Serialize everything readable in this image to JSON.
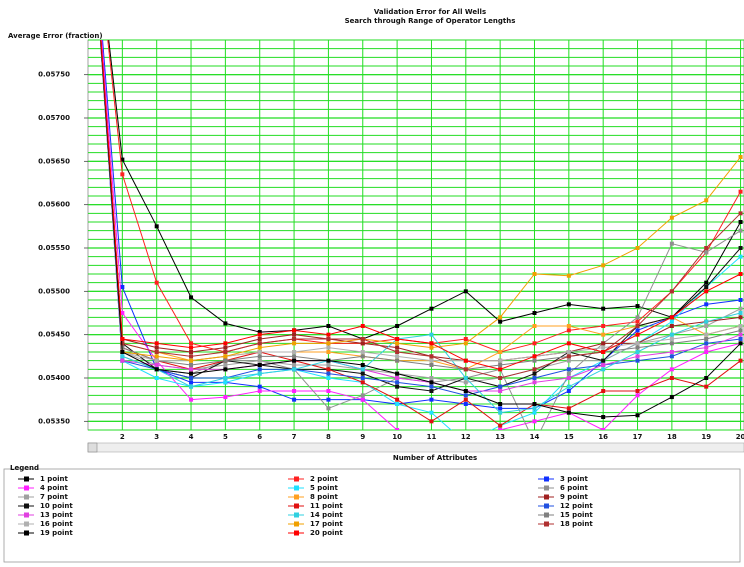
{
  "chart_data": {
    "type": "line",
    "title": "Validation Error for All Wells",
    "subtitle": "Search through Range of Operator Lengths",
    "y_label": "Average Error (fraction)",
    "x_label": "Number of Attributes",
    "legend_title": "Legend",
    "grid": true,
    "grid_color": "#22dd22",
    "x": [
      1,
      2,
      3,
      4,
      5,
      6,
      7,
      8,
      9,
      10,
      11,
      12,
      13,
      14,
      15,
      16,
      17,
      18,
      19,
      20
    ],
    "xlim": [
      1,
      20.1
    ],
    "xticks": [
      2,
      3,
      4,
      5,
      6,
      7,
      8,
      9,
      10,
      11,
      12,
      13,
      14,
      15,
      16,
      17,
      18,
      19,
      20
    ],
    "ylim": [
      0.0534,
      0.0579
    ],
    "yticks": [
      {
        "value": 0.0575,
        "label": "0.05750"
      },
      {
        "value": 0.057,
        "label": "0.05700"
      },
      {
        "value": 0.0565,
        "label": "0.05650"
      },
      {
        "value": 0.056,
        "label": "0.05600"
      },
      {
        "value": 0.0555,
        "label": "0.05550"
      },
      {
        "value": 0.055,
        "label": "0.05500"
      },
      {
        "value": 0.0545,
        "label": "0.05450"
      },
      {
        "value": 0.054,
        "label": "0.05400"
      },
      {
        "value": 0.0535,
        "label": "0.05350"
      }
    ],
    "y_minor_gridlines": [
      0.0534,
      0.0535,
      0.0536,
      0.0537,
      0.0538,
      0.0539,
      0.054,
      0.0541,
      0.0542,
      0.0543,
      0.0544,
      0.0545,
      0.0546,
      0.0547,
      0.0548,
      0.0549,
      0.055,
      0.0551,
      0.0552,
      0.0553,
      0.0554,
      0.0555,
      0.0556,
      0.0557,
      0.0558,
      0.0559,
      0.056,
      0.0561,
      0.0562,
      0.0563,
      0.0564,
      0.0565,
      0.0566,
      0.0567,
      0.0568,
      0.0569,
      0.057,
      0.0571,
      0.0572,
      0.0573,
      0.0574,
      0.0575,
      0.0576,
      0.0577,
      0.0578,
      0.0579
    ],
    "series": [
      {
        "name": "1 point",
        "color": "#000000",
        "values": [
          0.06,
          0.05652,
          0.05575,
          0.05493,
          0.05463,
          0.05453,
          0.05455,
          0.0546,
          0.05445,
          0.0546,
          0.0548,
          0.055,
          0.05465,
          0.05475,
          0.05485,
          0.0548,
          0.05483,
          0.0547,
          0.0551,
          0.0558
        ]
      },
      {
        "name": "2 point",
        "color": "#ff2020",
        "values": [
          0.06,
          0.05635,
          0.0551,
          0.0544,
          0.0543,
          0.0544,
          0.05445,
          0.0544,
          0.0544,
          0.05445,
          0.0544,
          0.05445,
          0.0543,
          0.0544,
          0.05455,
          0.0546,
          0.05465,
          0.055,
          0.05545,
          0.05615
        ]
      },
      {
        "name": "3 point",
        "color": "#1030ff",
        "values": [
          0.06,
          0.05505,
          0.0541,
          0.05395,
          0.05395,
          0.0539,
          0.05375,
          0.05375,
          0.05375,
          0.0537,
          0.05375,
          0.0537,
          0.05365,
          0.05365,
          0.05385,
          0.0542,
          0.05455,
          0.0547,
          0.05485,
          0.0549
        ]
      },
      {
        "name": "4 point",
        "color": "#ff20ff",
        "values": [
          0.06,
          0.05475,
          0.0542,
          0.05375,
          0.05378,
          0.05385,
          0.05385,
          0.05385,
          0.05375,
          0.0534,
          0.05325,
          0.05305,
          0.0534,
          0.0535,
          0.0536,
          0.0534,
          0.0538,
          0.0541,
          0.0543,
          0.0544
        ]
      },
      {
        "name": "5 point",
        "color": "#20e0ff",
        "values": [
          0.06,
          0.0542,
          0.054,
          0.0539,
          0.05395,
          0.05405,
          0.0541,
          0.054,
          0.05395,
          0.0537,
          0.0536,
          0.05325,
          0.05345,
          0.0536,
          0.054,
          0.0542,
          0.0544,
          0.05465,
          0.05505,
          0.0554
        ]
      },
      {
        "name": "6 point",
        "color": "#909090",
        "values": [
          0.06,
          0.05425,
          0.0541,
          0.05405,
          0.0542,
          0.0542,
          0.0541,
          0.05365,
          0.0538,
          0.054,
          0.05395,
          0.054,
          0.0541,
          0.05325,
          0.05405,
          0.0544,
          0.0547,
          0.05555,
          0.05545,
          0.0557
        ]
      },
      {
        "name": "7 point",
        "color": "#a0a0a0",
        "values": [
          0.06,
          0.0543,
          0.05415,
          0.0541,
          0.05415,
          0.0542,
          0.05415,
          0.05415,
          0.0541,
          0.05405,
          0.054,
          0.05395,
          0.054,
          0.0541,
          0.0542,
          0.0542,
          0.0544,
          0.0545,
          0.0546,
          0.0548
        ]
      },
      {
        "name": "8 point",
        "color": "#ffa020",
        "values": [
          0.06,
          0.0544,
          0.0543,
          0.0542,
          0.05425,
          0.0543,
          0.0543,
          0.0543,
          0.05425,
          0.0542,
          0.0542,
          0.0541,
          0.0543,
          0.0546,
          0.0546,
          0.0545,
          0.0546,
          0.0547,
          0.0545,
          0.0546
        ]
      },
      {
        "name": "9 point",
        "color": "#a02020",
        "values": [
          0.06,
          0.05445,
          0.05435,
          0.0543,
          0.05435,
          0.05445,
          0.0545,
          0.05445,
          0.0544,
          0.05435,
          0.05425,
          0.0542,
          0.0542,
          0.05425,
          0.0543,
          0.0544,
          0.0544,
          0.0546,
          0.05465,
          0.0547
        ]
      },
      {
        "name": "10 point",
        "color": "#101010",
        "values": [
          0.06,
          0.0544,
          0.0541,
          0.054,
          0.0542,
          0.05415,
          0.0541,
          0.0541,
          0.05405,
          0.0539,
          0.05385,
          0.054,
          0.0539,
          0.05405,
          0.0543,
          0.0542,
          0.0546,
          0.0547,
          0.05505,
          0.0555
        ]
      },
      {
        "name": "11 point",
        "color": "#e01010",
        "values": [
          0.06,
          0.05435,
          0.0542,
          0.0541,
          0.0542,
          0.0543,
          0.0542,
          0.0541,
          0.05395,
          0.05375,
          0.0535,
          0.05375,
          0.05345,
          0.0537,
          0.05365,
          0.05385,
          0.05385,
          0.054,
          0.0539,
          0.0542
        ]
      },
      {
        "name": "12 point",
        "color": "#2050e0",
        "values": [
          0.06,
          0.0542,
          0.0541,
          0.054,
          0.054,
          0.0541,
          0.0541,
          0.05405,
          0.054,
          0.05395,
          0.0539,
          0.0538,
          0.0539,
          0.054,
          0.0541,
          0.05415,
          0.0542,
          0.05425,
          0.0544,
          0.05445
        ]
      },
      {
        "name": "13 point",
        "color": "#e040e0",
        "values": [
          0.06,
          0.0542,
          0.05415,
          0.0541,
          0.0541,
          0.05415,
          0.0542,
          0.0542,
          0.0541,
          0.054,
          0.05395,
          0.05385,
          0.05385,
          0.05395,
          0.054,
          0.05415,
          0.05425,
          0.0543,
          0.05435,
          0.0545
        ]
      },
      {
        "name": "14 point",
        "color": "#30d0e0",
        "values": [
          0.06,
          0.05425,
          0.0541,
          0.0539,
          0.054,
          0.05405,
          0.0541,
          0.0542,
          0.0541,
          0.05445,
          0.0545,
          0.054,
          0.0536,
          0.05365,
          0.0539,
          0.0541,
          0.0543,
          0.0545,
          0.05465,
          0.05475
        ]
      },
      {
        "name": "15 point",
        "color": "#808080",
        "values": [
          0.06,
          0.05435,
          0.0542,
          0.05415,
          0.0542,
          0.05425,
          0.05425,
          0.0542,
          0.05425,
          0.0542,
          0.05415,
          0.0541,
          0.05415,
          0.0542,
          0.05425,
          0.0543,
          0.05435,
          0.0544,
          0.05445,
          0.05455
        ]
      },
      {
        "name": "16 point",
        "color": "#b0b0b0",
        "values": [
          0.06,
          0.0543,
          0.0542,
          0.0542,
          0.05425,
          0.0543,
          0.0543,
          0.05435,
          0.0543,
          0.05425,
          0.0542,
          0.0542,
          0.0542,
          0.05425,
          0.0543,
          0.05435,
          0.0544,
          0.05445,
          0.0545,
          0.0546
        ]
      },
      {
        "name": "17 point",
        "color": "#f0a000",
        "values": [
          0.06,
          0.0543,
          0.05425,
          0.0542,
          0.05425,
          0.05435,
          0.0544,
          0.0544,
          0.05445,
          0.0544,
          0.05435,
          0.0544,
          0.0547,
          0.0552,
          0.05518,
          0.0553,
          0.0555,
          0.05585,
          0.05605,
          0.05655
        ]
      },
      {
        "name": "18 point",
        "color": "#b03030",
        "values": [
          0.06,
          0.0544,
          0.0543,
          0.05425,
          0.0543,
          0.0544,
          0.05445,
          0.05445,
          0.05445,
          0.0543,
          0.05425,
          0.0541,
          0.054,
          0.0541,
          0.05425,
          0.0543,
          0.0546,
          0.055,
          0.0555,
          0.0559
        ]
      },
      {
        "name": "19 point",
        "color": "#000000",
        "values": [
          0.06,
          0.0543,
          0.0541,
          0.05405,
          0.0541,
          0.05415,
          0.0542,
          0.0542,
          0.05415,
          0.05405,
          0.05395,
          0.05385,
          0.0537,
          0.0537,
          0.0536,
          0.05355,
          0.05357,
          0.05378,
          0.054,
          0.0544
        ]
      },
      {
        "name": "20 point",
        "color": "#ff0000",
        "values": [
          0.06,
          0.05445,
          0.0544,
          0.05435,
          0.0544,
          0.0545,
          0.05455,
          0.0545,
          0.0546,
          0.05445,
          0.0544,
          0.0542,
          0.0541,
          0.05425,
          0.0544,
          0.0543,
          0.0545,
          0.0547,
          0.055,
          0.0552
        ]
      }
    ]
  }
}
